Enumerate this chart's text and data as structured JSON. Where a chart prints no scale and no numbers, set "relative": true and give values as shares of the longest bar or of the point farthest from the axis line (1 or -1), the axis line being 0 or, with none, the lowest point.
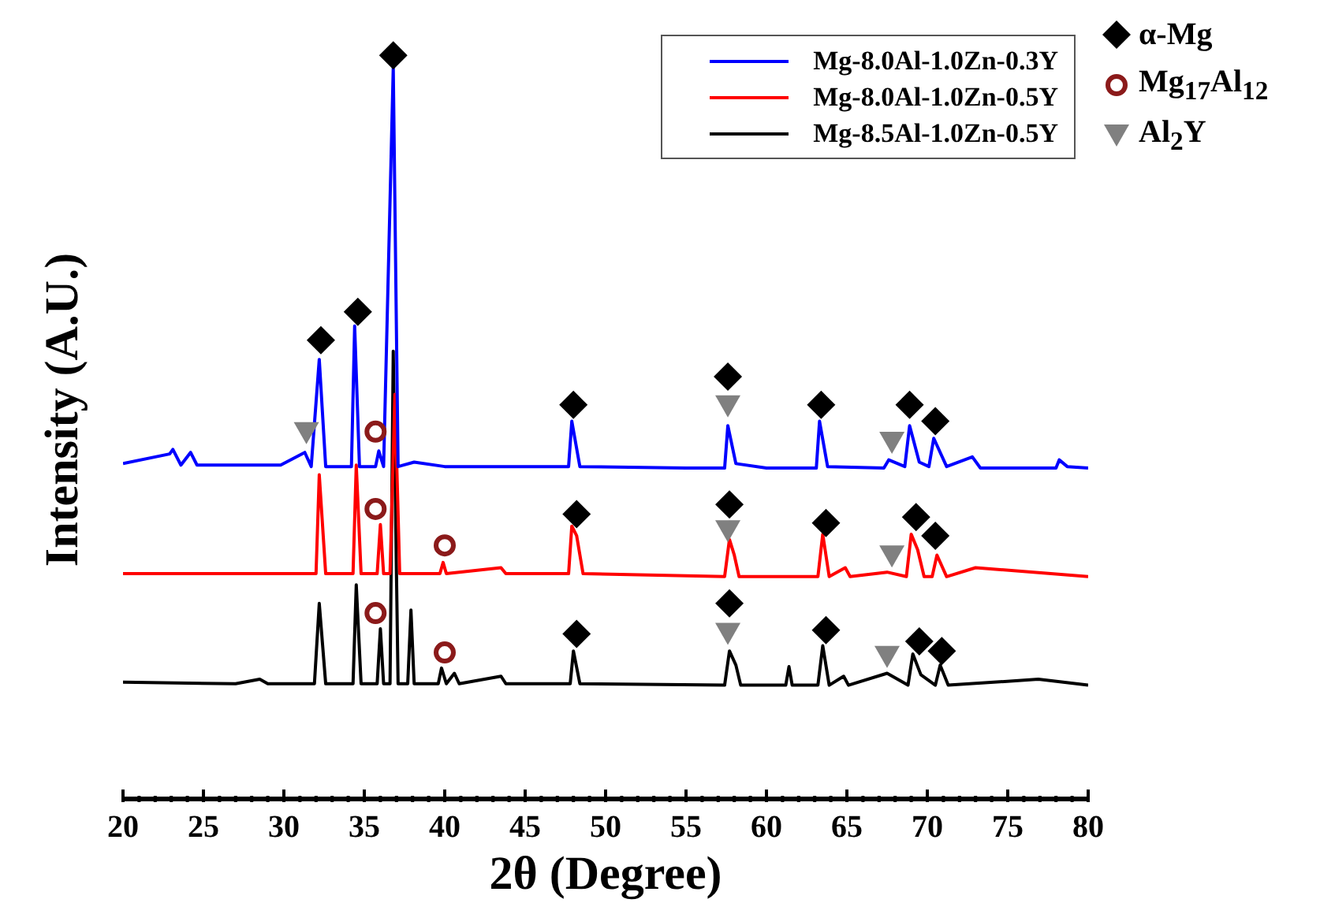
{
  "chart_data": {
    "type": "line",
    "relative": true,
    "xlabel": "2θ (Degree)",
    "ylabel": "Intensity (A.U.)",
    "xlim": [
      20,
      80
    ],
    "xticks": [
      20,
      {
        "value": 21,
        "label": null
      },
      {
        "value": 22,
        "label": null
      },
      {
        "value": 23,
        "label": null
      },
      {
        "value": 24,
        "label": null
      },
      25,
      {
        "value": 26,
        "label": null
      },
      {
        "value": 27,
        "label": null
      },
      {
        "value": 28,
        "label": null
      },
      {
        "value": 29,
        "label": null
      },
      30,
      {
        "value": 31,
        "label": null
      },
      {
        "value": 32,
        "label": null
      },
      {
        "value": 33,
        "label": null
      },
      {
        "value": 34,
        "label": null
      },
      35,
      {
        "value": 36,
        "label": null
      },
      {
        "value": 37,
        "label": null
      },
      {
        "value": 38,
        "label": null
      },
      {
        "value": 39,
        "label": null
      },
      40,
      {
        "value": 41,
        "label": null
      },
      {
        "value": 42,
        "label": null
      },
      {
        "value": 43,
        "label": null
      },
      {
        "value": 44,
        "label": null
      },
      45,
      {
        "value": 46,
        "label": null
      },
      {
        "value": 47,
        "label": null
      },
      {
        "value": 48,
        "label": null
      },
      {
        "value": 49,
        "label": null
      },
      50,
      {
        "value": 51,
        "label": null
      },
      {
        "value": 52,
        "label": null
      },
      {
        "value": 53,
        "label": null
      },
      {
        "value": 54,
        "label": null
      },
      55,
      {
        "value": 56,
        "label": null
      },
      {
        "value": 57,
        "label": null
      },
      {
        "value": 58,
        "label": null
      },
      {
        "value": 59,
        "label": null
      },
      60,
      {
        "value": 61,
        "label": null
      },
      {
        "value": 62,
        "label": null
      },
      {
        "value": 63,
        "label": null
      },
      {
        "value": 64,
        "label": null
      },
      65,
      {
        "value": 66,
        "label": null
      },
      {
        "value": 67,
        "label": null
      },
      {
        "value": 68,
        "label": null
      },
      {
        "value": 69,
        "label": null
      },
      70,
      {
        "value": 71,
        "label": null
      },
      {
        "value": 72,
        "label": null
      },
      {
        "value": 73,
        "label": null
      },
      {
        "value": 74,
        "label": null
      },
      75,
      {
        "value": 76,
        "label": null
      },
      {
        "value": 77,
        "label": null
      },
      {
        "value": 78,
        "label": null
      },
      {
        "value": 79,
        "label": null
      },
      80
    ],
    "legend": "top right",
    "grid": false,
    "line_style": "solid",
    "series": [
      {
        "name": "Mg-8.0Al-1.0Zn-0.3Y",
        "color": "#0000ff",
        "x": [
          20,
          22.9,
          23.1,
          23.6,
          24.2,
          24.6,
          29.8,
          31.3,
          31.7,
          32.2,
          32.6,
          34.2,
          34.4,
          34.7,
          35.7,
          35.9,
          36.2,
          36.8,
          37.1,
          38.1,
          40,
          45,
          47.7,
          47.9,
          48.4,
          55,
          57.4,
          57.6,
          58.1,
          60,
          63.1,
          63.3,
          63.8,
          67.3,
          67.6,
          68.6,
          68.9,
          69.5,
          70.1,
          70.4,
          71.2,
          72.8,
          73.3,
          78,
          78.2,
          78.7,
          80
        ],
        "values": [
          0.451,
          0.464,
          0.47,
          0.449,
          0.466,
          0.449,
          0.449,
          0.466,
          0.447,
          0.591,
          0.447,
          0.447,
          0.636,
          0.447,
          0.447,
          0.468,
          0.447,
          0.983,
          0.447,
          0.453,
          0.447,
          0.447,
          0.447,
          0.508,
          0.447,
          0.445,
          0.445,
          0.502,
          0.451,
          0.445,
          0.445,
          0.508,
          0.447,
          0.445,
          0.456,
          0.447,
          0.502,
          0.453,
          0.447,
          0.485,
          0.447,
          0.46,
          0.445,
          0.445,
          0.456,
          0.447,
          0.445
        ]
      },
      {
        "name": "Mg-8.0Al-1.0Zn-0.5Y",
        "color": "#ff0000",
        "x": [
          20,
          30,
          32,
          32.2,
          32.6,
          34.3,
          34.5,
          34.8,
          35.8,
          36,
          36.2,
          36.6,
          36.9,
          37.2,
          39.7,
          39.9,
          40.1,
          41.8,
          43.5,
          43.8,
          47.7,
          47.9,
          48.2,
          48.6,
          57.4,
          57.7,
          58,
          58.3,
          63.2,
          63.5,
          63.9,
          64.9,
          65.2,
          67.5,
          68.7,
          69,
          69.4,
          69.8,
          70.3,
          70.6,
          71.2,
          73,
          80
        ],
        "values": [
          0.303,
          0.303,
          0.303,
          0.436,
          0.303,
          0.303,
          0.449,
          0.303,
          0.303,
          0.369,
          0.303,
          0.303,
          0.544,
          0.303,
          0.303,
          0.318,
          0.303,
          0.307,
          0.311,
          0.303,
          0.303,
          0.367,
          0.354,
          0.303,
          0.299,
          0.349,
          0.328,
          0.299,
          0.299,
          0.356,
          0.299,
          0.311,
          0.299,
          0.305,
          0.299,
          0.356,
          0.335,
          0.299,
          0.299,
          0.328,
          0.299,
          0.311,
          0.299
        ]
      },
      {
        "name": "Mg-8.5Al-1.0Zn-0.5Y",
        "color": "#000000",
        "x": [
          20,
          27,
          28.5,
          29,
          31.9,
          32.2,
          32.6,
          34.3,
          34.5,
          34.8,
          35.8,
          36,
          36.2,
          36.6,
          36.8,
          37.1,
          37.7,
          37.9,
          38.1,
          39.6,
          39.8,
          40.1,
          40.6,
          40.9,
          43.5,
          43.8,
          47.8,
          48,
          48.4,
          57.4,
          57.7,
          58.1,
          58.4,
          61.2,
          61.4,
          61.6,
          63.2,
          63.5,
          63.9,
          64.8,
          65.1,
          67.5,
          68.8,
          69.1,
          69.6,
          70.5,
          70.8,
          71.3,
          76.9,
          80
        ],
        "values": [
          0.157,
          0.155,
          0.161,
          0.155,
          0.155,
          0.263,
          0.155,
          0.155,
          0.288,
          0.155,
          0.155,
          0.229,
          0.155,
          0.155,
          0.602,
          0.155,
          0.155,
          0.254,
          0.155,
          0.155,
          0.176,
          0.155,
          0.169,
          0.155,
          0.165,
          0.155,
          0.155,
          0.199,
          0.155,
          0.153,
          0.199,
          0.18,
          0.153,
          0.153,
          0.178,
          0.153,
          0.153,
          0.206,
          0.153,
          0.165,
          0.153,
          0.169,
          0.153,
          0.195,
          0.167,
          0.153,
          0.18,
          0.153,
          0.161,
          0.153
        ]
      },
      {
        "name": "α-Mg",
        "type": "scatter",
        "marker": "diamond",
        "color": "#000000",
        "x": [
          32.3,
          34.6,
          36.8,
          48,
          57.6,
          63.4,
          68.9,
          70.5,
          48.2,
          57.7,
          63.7,
          69.3,
          70.5,
          48.2,
          57.7,
          63.7,
          69.5,
          70.9
        ],
        "values": [
          0.617,
          0.655,
          1.0,
          0.53,
          0.568,
          0.53,
          0.53,
          0.508,
          0.383,
          0.396,
          0.371,
          0.379,
          0.354,
          0.222,
          0.263,
          0.227,
          0.212,
          0.199
        ]
      },
      {
        "name": "Mg$_{17}$Al$_{12}$",
        "type": "scatter",
        "marker": "circle",
        "color": "#8b1a1a",
        "x": [
          35.7,
          35.7,
          40,
          35.7,
          40
        ],
        "values": [
          0.494,
          0.39,
          0.341,
          0.25,
          0.197
        ]
      },
      {
        "name": "Al$_{2}$Y",
        "type": "scatter",
        "marker": "triangle",
        "color": "#808080",
        "x": [
          31.4,
          57.6,
          67.8,
          57.6,
          67.8,
          57.6,
          67.5
        ],
        "values": [
          0.492,
          0.528,
          0.479,
          0.36,
          0.326,
          0.222,
          0.191
        ]
      }
    ]
  }
}
